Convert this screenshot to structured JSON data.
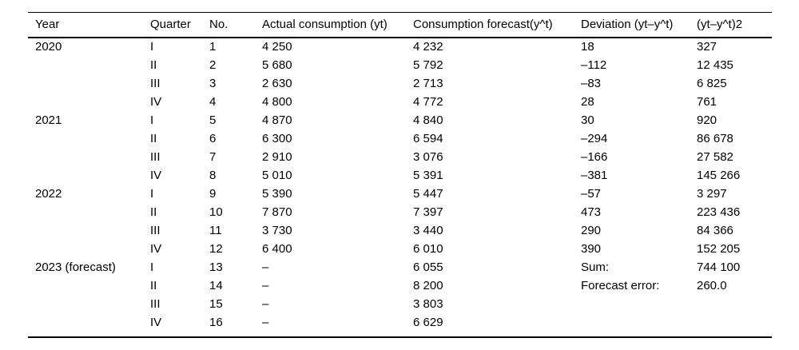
{
  "colors": {
    "background": "#ffffff",
    "text": "#000000",
    "rule": "#000000"
  },
  "table": {
    "columns": [
      "Year",
      "Quarter",
      "No.",
      "Actual consumption (yt)",
      "Consumption forecast(y^t)",
      "Deviation (yt–y^t)",
      "(yt–y^t)2"
    ],
    "rows": [
      [
        "2020",
        "I",
        "1",
        "4 250",
        "4 232",
        "18",
        "327"
      ],
      [
        "",
        "II",
        "2",
        "5 680",
        "5 792",
        "–112",
        "12 435"
      ],
      [
        "",
        "III",
        "3",
        "2 630",
        "2 713",
        "–83",
        "6 825"
      ],
      [
        "",
        "IV",
        "4",
        "4 800",
        "4 772",
        "28",
        "761"
      ],
      [
        "2021",
        "I",
        "5",
        "4 870",
        "4 840",
        "30",
        "920"
      ],
      [
        "",
        "II",
        "6",
        "6 300",
        "6 594",
        "–294",
        "86 678"
      ],
      [
        "",
        "III",
        "7",
        "2 910",
        "3 076",
        "–166",
        "27 582"
      ],
      [
        "",
        "IV",
        "8",
        "5 010",
        "5 391",
        "–381",
        "145 266"
      ],
      [
        "2022",
        "I",
        "9",
        "5 390",
        "5 447",
        "–57",
        "3 297"
      ],
      [
        "",
        "II",
        "10",
        "7 870",
        "7 397",
        "473",
        "223 436"
      ],
      [
        "",
        "III",
        "11",
        "3 730",
        "3 440",
        "290",
        "84 366"
      ],
      [
        "",
        "IV",
        "12",
        "6 400",
        "6 010",
        "390",
        "152 205"
      ],
      [
        "2023 (forecast)",
        "I",
        "13",
        "–",
        "6 055",
        "Sum:",
        "744 100"
      ],
      [
        "",
        "II",
        "14",
        "–",
        "8 200",
        "Forecast error:",
        "260.0"
      ],
      [
        "",
        "III",
        "15",
        "–",
        "3 803",
        "",
        ""
      ],
      [
        "",
        "IV",
        "16",
        "–",
        "6 629",
        "",
        ""
      ]
    ]
  }
}
